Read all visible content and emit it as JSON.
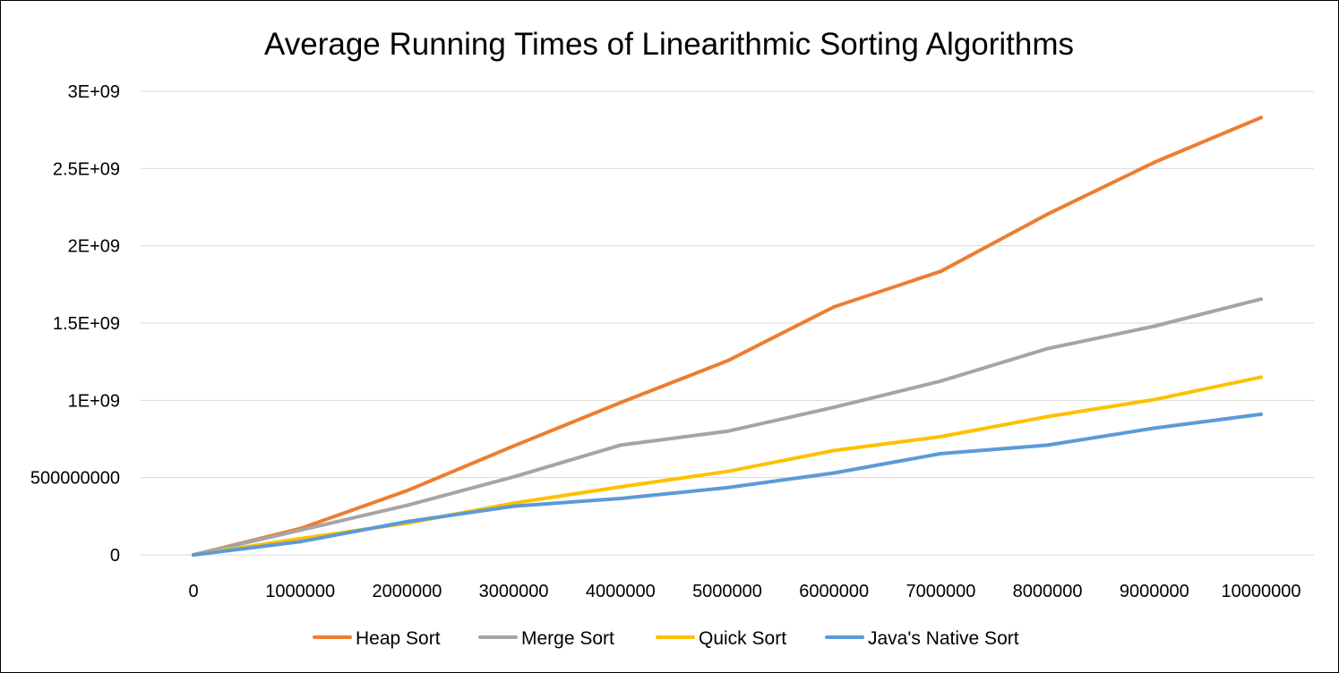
{
  "chart_data": {
    "type": "line",
    "title": "Average Running Times of Linearithmic Sorting Algorithms",
    "xlabel": "",
    "ylabel": "",
    "categories": [
      "0",
      "1000000",
      "2000000",
      "3000000",
      "4000000",
      "5000000",
      "6000000",
      "7000000",
      "8000000",
      "9000000",
      "10000000"
    ],
    "y_ticks": [
      {
        "value": 0,
        "label": "0"
      },
      {
        "value": 500000000,
        "label": "500000000"
      },
      {
        "value": 1000000000,
        "label": "1E+09"
      },
      {
        "value": 1500000000,
        "label": "1.5E+09"
      },
      {
        "value": 2000000000,
        "label": "2E+09"
      },
      {
        "value": 2500000000,
        "label": "2.5E+09"
      },
      {
        "value": 3000000000,
        "label": "3E+09"
      }
    ],
    "ylim": [
      0,
      3000000000
    ],
    "grid": "horizontal",
    "legend_position": "bottom",
    "series": [
      {
        "name": "Heap Sort",
        "color": "#ed7d31",
        "values": [
          0,
          170000000,
          415000000,
          705000000,
          985000000,
          1255000000,
          1605000000,
          1835000000,
          2205000000,
          2540000000,
          2830000000
        ]
      },
      {
        "name": "Merge Sort",
        "color": "#a5a5a5",
        "values": [
          0,
          160000000,
          320000000,
          505000000,
          710000000,
          800000000,
          955000000,
          1125000000,
          1335000000,
          1480000000,
          1655000000
        ]
      },
      {
        "name": "Quick Sort",
        "color": "#ffc000",
        "values": [
          0,
          105000000,
          205000000,
          335000000,
          440000000,
          540000000,
          675000000,
          765000000,
          895000000,
          1005000000,
          1150000000
        ]
      },
      {
        "name": "Java's Native Sort",
        "color": "#5b9bd5",
        "values": [
          0,
          85000000,
          215000000,
          315000000,
          365000000,
          435000000,
          530000000,
          655000000,
          710000000,
          820000000,
          910000000
        ]
      }
    ]
  }
}
